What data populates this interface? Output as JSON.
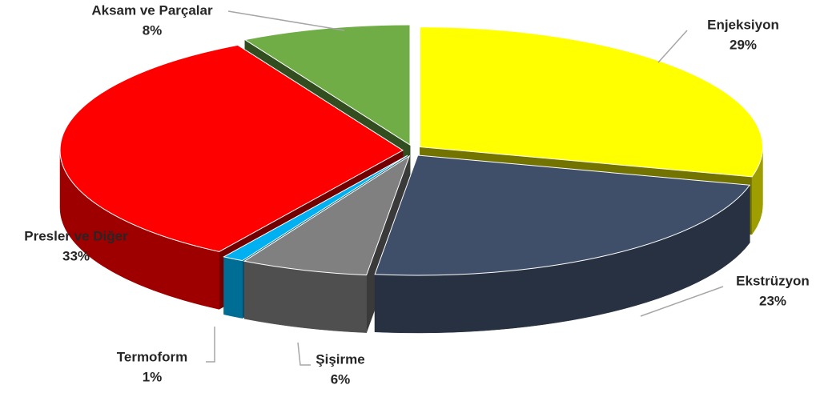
{
  "chart_data": {
    "type": "pie",
    "categories": [
      "Enjeksiyon",
      "Ekstrüzyon",
      "Şişirme",
      "Termoform",
      "Presler ve Diğer",
      "Aksam ve Parçalar"
    ],
    "values": [
      29,
      23,
      6,
      1,
      33,
      8
    ],
    "value_labels": [
      "29%",
      "23%",
      "6%",
      "1%",
      "33%",
      "8%"
    ],
    "colors": [
      "#ffff00",
      "#3f4f69",
      "#808080",
      "#00b0f0",
      "#ff0000",
      "#70ad47"
    ]
  }
}
